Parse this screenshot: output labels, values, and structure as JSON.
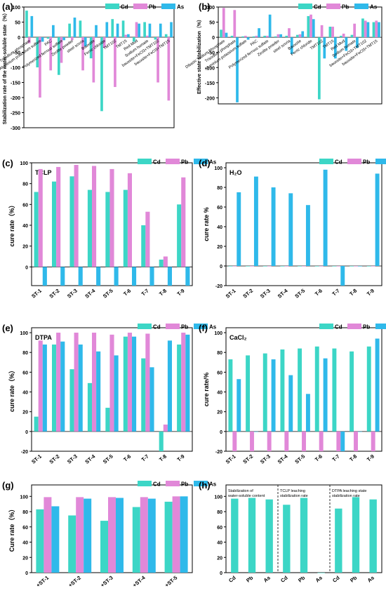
{
  "colors": {
    "Cd": "#3cd6c6",
    "Pb": "#e188d8",
    "As": "#2fb9ea",
    "axis": "#000000"
  },
  "chart_data": [
    {
      "panel": "(a)",
      "type": "bar",
      "ylabel": "Stabilization rate of the water-soluble state（%）",
      "ylim": [
        -300,
        100
      ],
      "yticks": [
        100,
        50,
        0,
        -50,
        -100,
        -150,
        -200,
        -250,
        -300
      ],
      "categories": [
        "Trisodium phosphate",
        "Aluminium potassium sulfate",
        "PAC",
        "Polymerized ferrous sulfate",
        "Zeolite powder",
        "steel scoria",
        "Bauxsite",
        "Ferric chloride",
        "TMT102",
        "TMT15",
        "Red Mud",
        "Sodium humate",
        "bauxsite+FeCl3+TMT102",
        "bauxsite+FeCl3+TMT15"
      ],
      "series": [
        {
          "name": "Cd",
          "values": [
            88,
            -100,
            -5,
            -125,
            45,
            55,
            -70,
            -245,
            60,
            55,
            -15,
            50,
            -8,
            10
          ]
        },
        {
          "name": "Pb",
          "values": [
            -20,
            -200,
            -110,
            -85,
            -10,
            -110,
            -150,
            -35,
            -165,
            8,
            50,
            5,
            -150,
            -210
          ]
        },
        {
          "name": "As",
          "values": [
            70,
            -15,
            40,
            -10,
            65,
            -30,
            40,
            50,
            45,
            10,
            45,
            45,
            45,
            50
          ]
        }
      ]
    },
    {
      "panel": "(b)",
      "type": "bar",
      "ylabel": "Effective state stabilization（%）",
      "ylim": [
        -220,
        100
      ],
      "yticks": [
        100,
        50,
        0,
        -50,
        -100,
        -150,
        -200
      ],
      "categories": [
        "Dibasic Sodium Phosphate",
        "Trisodium phosphate",
        "Aluminium potassium sulfate",
        "PAC",
        "Polymerized ferrous sulfate",
        "Zeolite powder",
        "steel scoria",
        "Bauxsite",
        "Ferric chloride",
        "TMT102",
        "TMT15",
        "Red Mud",
        "Sodium humate",
        "bauxsite+FeCl3+TMT102",
        "bauxsite+FeCl3+TMT15"
      ],
      "series": [
        {
          "name": "Cd",
          "values": [
            25,
            5,
            3,
            3,
            5,
            3,
            5,
            8,
            70,
            -205,
            35,
            5,
            8,
            62,
            50
          ]
        },
        {
          "name": "Pb",
          "values": [
            97,
            90,
            5,
            5,
            5,
            10,
            30,
            10,
            75,
            40,
            35,
            12,
            45,
            55,
            55
          ]
        },
        {
          "name": "As",
          "values": [
            15,
            -215,
            -8,
            30,
            75,
            10,
            -55,
            20,
            60,
            -70,
            -70,
            -45,
            -35,
            50,
            50
          ]
        }
      ]
    },
    {
      "panel": "(c)",
      "type": "bar",
      "title": "TCLP",
      "ylabel": "cure rate（%）",
      "ylim": [
        -18,
        100
      ],
      "yticks": [
        0,
        20,
        40,
        60,
        80,
        100
      ],
      "categories": [
        "ST-1",
        "ST-2",
        "ST-3",
        "ST-4",
        "ST-5",
        "T-6",
        "T-7",
        "T-8",
        "T-9"
      ],
      "series": [
        {
          "name": "Cd",
          "values": [
            72,
            82,
            87,
            74,
            72,
            74,
            40,
            7,
            60
          ]
        },
        {
          "name": "Pb",
          "values": [
            94,
            96,
            98,
            97,
            94,
            90,
            53,
            10,
            86
          ]
        },
        {
          "name": "As",
          "values": [
            -18,
            -18,
            -18,
            -18,
            -18,
            -18,
            -18,
            -18,
            -18
          ]
        }
      ]
    },
    {
      "panel": "(d)",
      "type": "bar",
      "title": "H₂O",
      "ylabel": "cure rate %",
      "ylim": [
        -20,
        105
      ],
      "yticks": [
        -20,
        0,
        20,
        40,
        60,
        80,
        100
      ],
      "categories": [
        "ST-1",
        "ST-2",
        "ST-3",
        "ST-4",
        "ST-5",
        "T-6",
        "T-7",
        "T-8",
        "T-9"
      ],
      "series": [
        {
          "name": "Cd",
          "values": [
            0,
            0,
            0,
            0,
            0,
            0,
            0,
            0,
            0
          ]
        },
        {
          "name": "Pb",
          "values": [
            0,
            0,
            0,
            0,
            0,
            0,
            0,
            0,
            0
          ]
        },
        {
          "name": "As",
          "values": [
            75,
            91,
            80,
            74,
            62,
            98,
            -20,
            0,
            94
          ]
        }
      ]
    },
    {
      "panel": "(e)",
      "type": "bar",
      "title": "DTPA",
      "ylabel": "cure rate（%）",
      "ylim": [
        -20,
        105
      ],
      "yticks": [
        -20,
        0,
        20,
        40,
        60,
        80,
        100
      ],
      "categories": [
        "ST-1",
        "ST-2",
        "ST-3",
        "ST-4",
        "ST-5",
        "T-6",
        "T-7",
        "T-8",
        "T-9"
      ],
      "series": [
        {
          "name": "Cd",
          "values": [
            15,
            88,
            63,
            49,
            24,
            96,
            74,
            -20,
            88
          ]
        },
        {
          "name": "Pb",
          "values": [
            92,
            100,
            100,
            100,
            98,
            100,
            99,
            7,
            100
          ]
        },
        {
          "name": "As",
          "values": [
            88,
            91,
            88,
            81,
            77,
            96,
            65,
            92,
            98
          ]
        }
      ]
    },
    {
      "panel": "(f)",
      "type": "bar",
      "title": "CaCl₂",
      "ylabel": "cure rate/%",
      "ylim": [
        -20,
        105
      ],
      "yticks": [
        -20,
        0,
        20,
        40,
        60,
        80,
        100
      ],
      "categories": [
        "ST-1",
        "ST-2",
        "ST-3",
        "ST-4",
        "ST-5",
        "T-6",
        "T-7",
        "T-8",
        "T-9"
      ],
      "series": [
        {
          "name": "Cd",
          "values": [
            73,
            77,
            79,
            83,
            84,
            86,
            84,
            81,
            86
          ]
        },
        {
          "name": "Pb",
          "values": [
            -20,
            -20,
            -20,
            -20,
            -20,
            -20,
            -20,
            -20,
            -20
          ]
        },
        {
          "name": "As",
          "values": [
            53,
            0,
            73,
            57,
            38,
            74,
            -20,
            0,
            94
          ]
        }
      ]
    },
    {
      "panel": "(g)",
      "type": "bar",
      "ylabel": "Cure rate（%）",
      "ylim": [
        0,
        115
      ],
      "yticks": [
        0,
        20,
        40,
        60,
        80,
        100
      ],
      "categories": [
        "+ST-1",
        "+ST-2",
        "+ST-3",
        "+ST-4",
        "+ST-5"
      ],
      "series": [
        {
          "name": "Cd",
          "values": [
            83,
            75,
            68,
            86,
            93
          ]
        },
        {
          "name": "Pb",
          "values": [
            99,
            99,
            99,
            99,
            100
          ]
        },
        {
          "name": "As",
          "values": [
            87,
            97,
            98,
            97,
            100
          ]
        }
      ]
    },
    {
      "panel": "(h)",
      "type": "bar",
      "ylim": [
        0,
        115
      ],
      "yticks": [
        0,
        20,
        40,
        60,
        80,
        100
      ],
      "categories": [
        "Cd",
        "Pb",
        "As",
        "Cd",
        "Pb",
        "As",
        "Cd",
        "Pb",
        "As"
      ],
      "values": [
        97,
        98,
        96,
        89,
        98,
        0,
        84,
        99,
        96
      ],
      "groups": [
        "Stabilization of water-soluble content",
        "TCLP leaching stabilization rate",
        "DTPA leaching state stabilization rate"
      ]
    }
  ]
}
